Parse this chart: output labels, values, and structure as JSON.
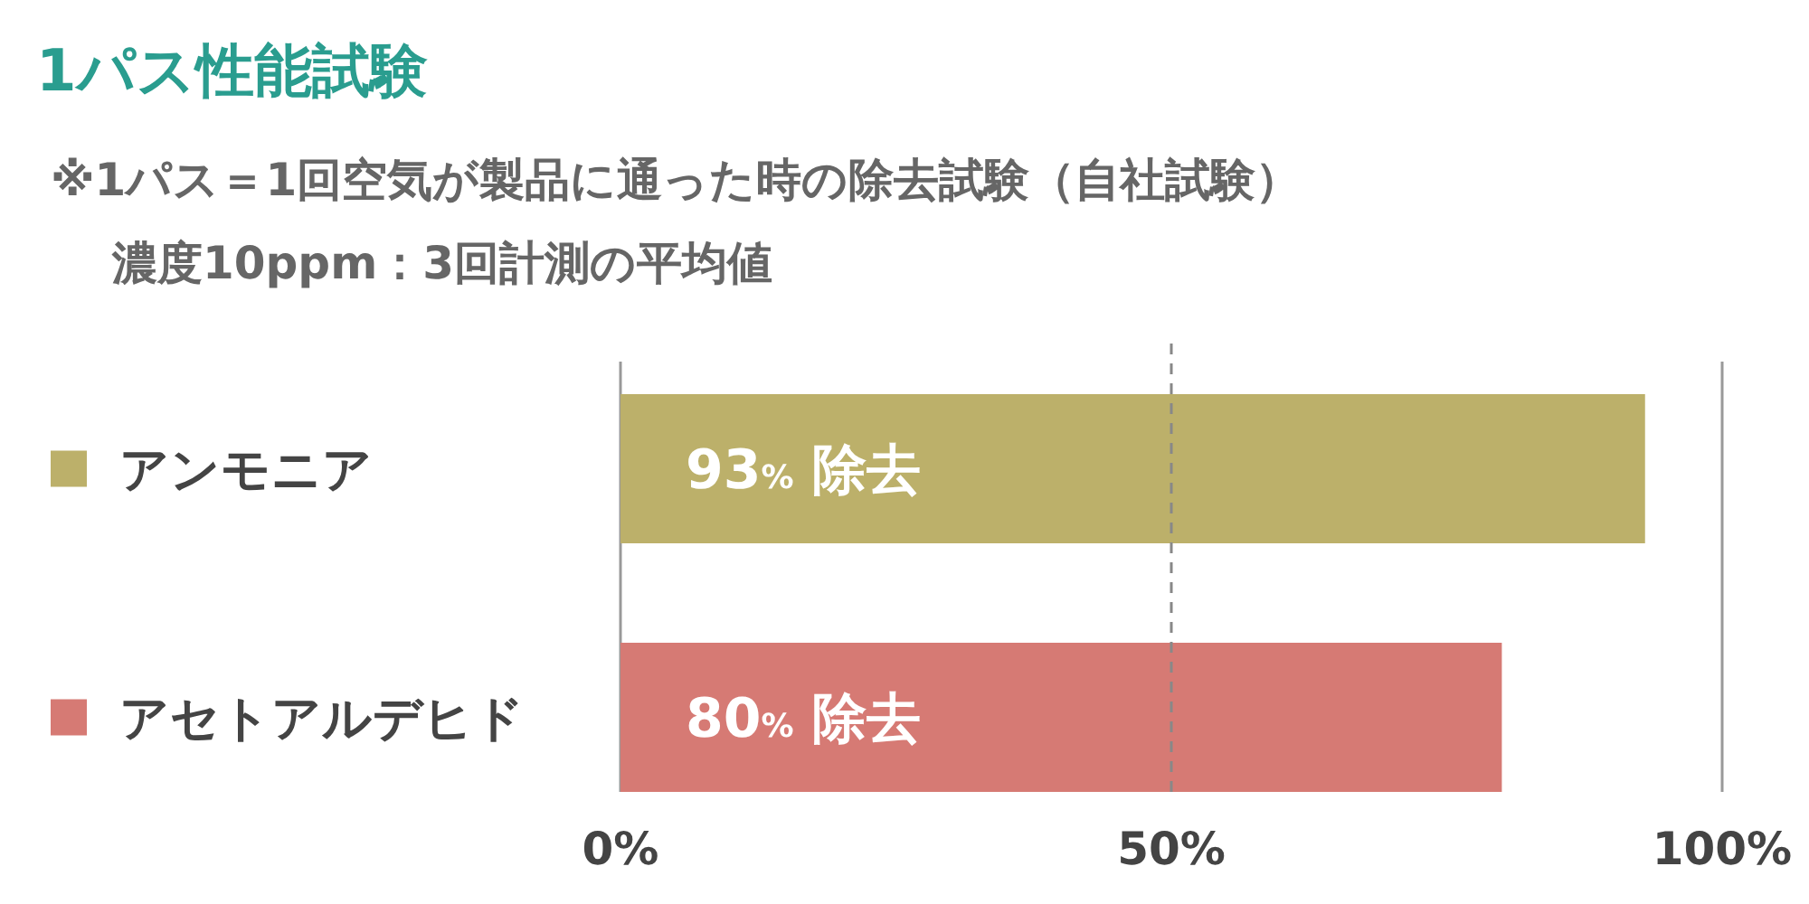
{
  "chart_data": {
    "type": "bar",
    "orientation": "horizontal",
    "title": "1パス性能試験",
    "subtitle": "※1パス＝1回空気が製品に通った時の除去試験（自社試験）",
    "annotations": [
      "濃度10ppm：3回計測の平均値"
    ],
    "categories": [
      "アンモニア",
      "アセトアルデヒド"
    ],
    "values": [
      93,
      80
    ],
    "colors": [
      "#bcb06a",
      "#d67a74"
    ],
    "value_labels": [
      "93% 除去",
      "80% 除去"
    ],
    "xlim": [
      0,
      100
    ],
    "xticks": [
      {
        "value": 0,
        "label": "0%"
      },
      {
        "value": 50,
        "label": "50%"
      },
      {
        "value": 100,
        "label": "100%"
      }
    ],
    "ref_lines": [
      {
        "axis": "x",
        "value": 50,
        "line_style": "dashed",
        "color": "#888888"
      }
    ]
  }
}
